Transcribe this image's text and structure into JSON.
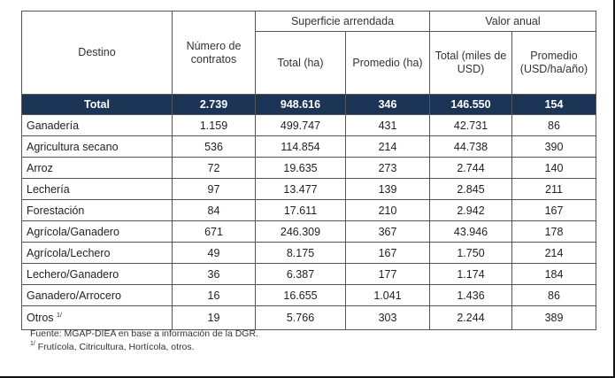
{
  "headers": {
    "destino": "Destino",
    "numero": "Número de contratos",
    "superficie": "Superficie arrendada",
    "valor": "Valor anual",
    "sup_total": "Total (ha)",
    "sup_prom": "Promedio (ha)",
    "val_total": "Total (miles de USD)",
    "val_prom": "Promedio (USD/ha/año)"
  },
  "total": {
    "label": "Total",
    "values": [
      "2.739",
      "948.616",
      "346",
      "146.550",
      "154"
    ]
  },
  "rows": [
    {
      "label": "Ganadería",
      "values": [
        "1.159",
        "499.747",
        "431",
        "42.731",
        "86"
      ]
    },
    {
      "label": "Agricultura secano",
      "values": [
        "536",
        "114.854",
        "214",
        "44.738",
        "390"
      ]
    },
    {
      "label": "Arroz",
      "values": [
        "72",
        "19.635",
        "273",
        "2.744",
        "140"
      ]
    },
    {
      "label": "Lechería",
      "values": [
        "97",
        "13.477",
        "139",
        "2.845",
        "211"
      ]
    },
    {
      "label": "Forestación",
      "values": [
        "84",
        "17.611",
        "210",
        "2.942",
        "167"
      ]
    },
    {
      "label": "Agrícola/Ganadero",
      "values": [
        "671",
        "246.309",
        "367",
        "43.946",
        "178"
      ]
    },
    {
      "label": "Agrícola/Lechero",
      "values": [
        "49",
        "8.175",
        "167",
        "1.750",
        "214"
      ]
    },
    {
      "label": "Lechero/Ganadero",
      "values": [
        "36",
        "6.387",
        "177",
        "1.174",
        "184"
      ]
    },
    {
      "label": "Ganadero/Arrocero",
      "values": [
        "16",
        "16.655",
        "1.041",
        "1.436",
        "86"
      ]
    },
    {
      "label": "Otros",
      "sup": "1/",
      "values": [
        "19",
        "5.766",
        "303",
        "2.244",
        "389"
      ]
    }
  ],
  "footnotes": {
    "source": "Fuente: MGAP-DIEA en base a información de la DGR.",
    "note_mark": "1/",
    "note": "Frutícola, Citricultura, Hortícola, otros."
  }
}
